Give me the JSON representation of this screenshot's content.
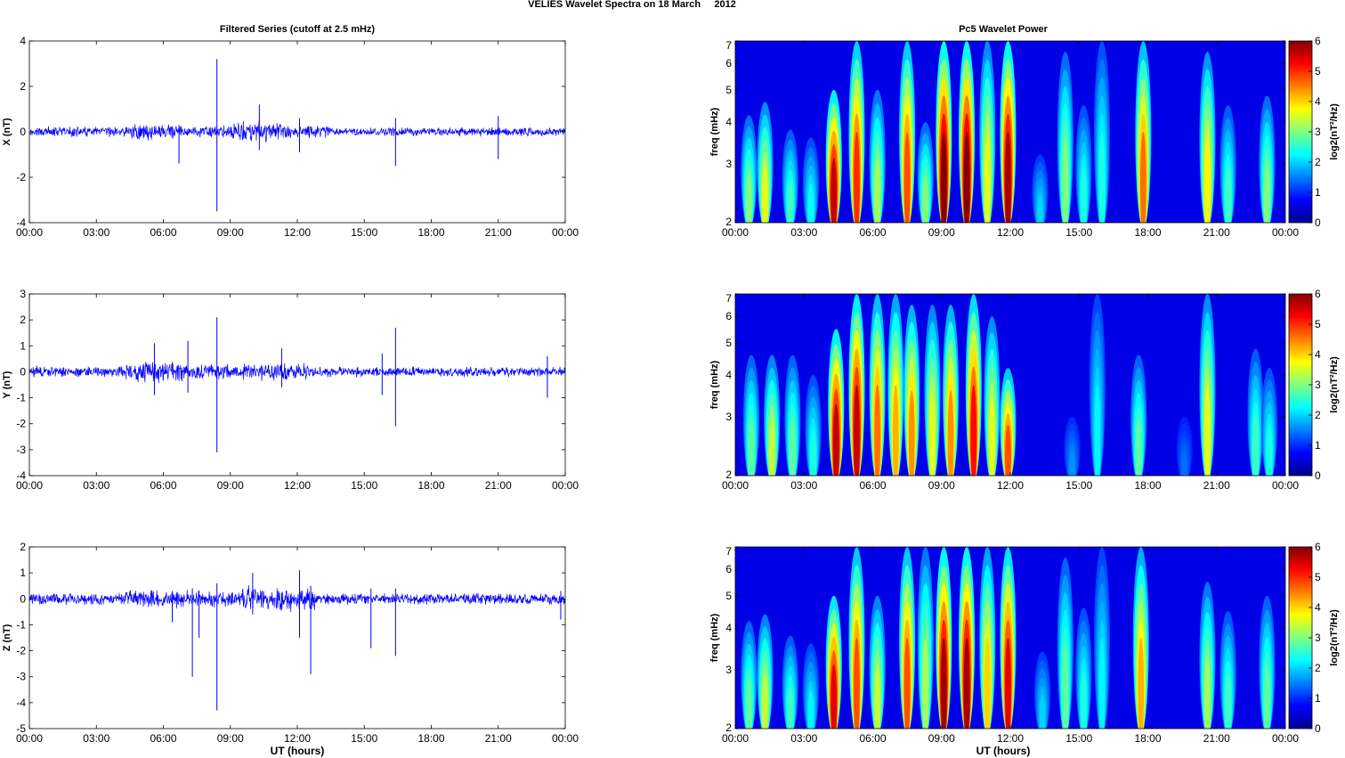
{
  "figure": {
    "title": "VELIES Wavelet Spectra on 18 March     2012",
    "left_column_title": "Filtered Series (cutoff at 2.5 mHz)",
    "right_column_title": "Pc5 Wavelet Power",
    "xlabel": "UT (hours)"
  },
  "chart_data": [
    {
      "type": "line",
      "name": "X filtered series",
      "ylabel": "X (nT)",
      "ylim": [
        -4,
        4
      ],
      "yticks": [
        "4",
        "2",
        "0",
        "-2",
        "-4"
      ],
      "xticks": [
        "00:00",
        "03:00",
        "06:00",
        "09:00",
        "12:00",
        "15:00",
        "18:00",
        "21:00",
        "00:00"
      ],
      "xlim_hours": [
        0,
        24
      ],
      "line_color": "#0000ff",
      "grid": false,
      "background_band": [
        {
          "from": 0.0,
          "to": 4.3,
          "amp": 0.25
        },
        {
          "from": 4.3,
          "to": 6.5,
          "amp": 0.4
        },
        {
          "from": 6.5,
          "to": 9.0,
          "amp": 0.3
        },
        {
          "from": 9.0,
          "to": 11.5,
          "amp": 0.5
        },
        {
          "from": 11.5,
          "to": 13.5,
          "amp": 0.35
        },
        {
          "from": 13.5,
          "to": 24.0,
          "amp": 0.22
        }
      ],
      "spikes": [
        {
          "x": 8.4,
          "lo": -3.5,
          "hi": 3.2
        },
        {
          "x": 6.7,
          "lo": -1.4,
          "hi": 0.3
        },
        {
          "x": 10.3,
          "lo": -0.8,
          "hi": 1.2
        },
        {
          "x": 16.4,
          "lo": -1.5,
          "hi": 0.6
        },
        {
          "x": 12.1,
          "lo": -0.9,
          "hi": 0.6
        },
        {
          "x": 21.0,
          "lo": -1.2,
          "hi": 0.7
        }
      ]
    },
    {
      "type": "heatmap",
      "name": "X wavelet power",
      "ylabel": "freq (mHz)",
      "yscale": "log",
      "ylim": [
        2,
        7
      ],
      "yticks": [
        "7",
        "6",
        "5",
        "4",
        "3",
        "2"
      ],
      "xticks": [
        "00:00",
        "03:00",
        "06:00",
        "09:00",
        "12:00",
        "15:00",
        "18:00",
        "21:00",
        "00:00"
      ],
      "colorbar_label": "log2(nT²/Hz)",
      "colorbar_ticks": [
        "6",
        "5",
        "4",
        "3",
        "2",
        "1",
        "0"
      ],
      "clim": [
        0,
        6
      ],
      "colormap": "jet",
      "blobs": [
        {
          "t": 0.6,
          "power": 3.0,
          "fmax": 4.2
        },
        {
          "t": 1.3,
          "power": 3.6,
          "fmax": 4.6
        },
        {
          "t": 2.4,
          "power": 2.6,
          "fmax": 3.8
        },
        {
          "t": 3.3,
          "power": 2.3,
          "fmax": 3.6
        },
        {
          "t": 4.3,
          "power": 5.6,
          "fmax": 5.0
        },
        {
          "t": 5.3,
          "power": 5.0,
          "fmax": 7.0
        },
        {
          "t": 6.2,
          "power": 3.2,
          "fmax": 5.0
        },
        {
          "t": 7.5,
          "power": 4.8,
          "fmax": 7.0
        },
        {
          "t": 8.3,
          "power": 3.0,
          "fmax": 4.0
        },
        {
          "t": 9.1,
          "power": 6.0,
          "fmax": 7.0
        },
        {
          "t": 10.1,
          "power": 6.0,
          "fmax": 7.0
        },
        {
          "t": 11.0,
          "power": 3.6,
          "fmax": 7.0
        },
        {
          "t": 11.9,
          "power": 5.8,
          "fmax": 7.0
        },
        {
          "t": 13.3,
          "power": 2.0,
          "fmax": 3.2
        },
        {
          "t": 14.4,
          "power": 3.0,
          "fmax": 6.5
        },
        {
          "t": 15.2,
          "power": 2.4,
          "fmax": 4.5
        },
        {
          "t": 16.0,
          "power": 2.4,
          "fmax": 7.0
        },
        {
          "t": 17.8,
          "power": 4.6,
          "fmax": 7.0
        },
        {
          "t": 20.6,
          "power": 3.8,
          "fmax": 6.5
        },
        {
          "t": 21.5,
          "power": 2.6,
          "fmax": 4.5
        },
        {
          "t": 23.2,
          "power": 3.0,
          "fmax": 4.8
        }
      ]
    },
    {
      "type": "line",
      "name": "Y filtered series",
      "ylabel": "Y (nT)",
      "ylim": [
        -4,
        3
      ],
      "yticks": [
        "3",
        "2",
        "1",
        "0",
        "-1",
        "-2",
        "-3",
        "-4"
      ],
      "xticks": [
        "00:00",
        "03:00",
        "06:00",
        "09:00",
        "12:00",
        "15:00",
        "18:00",
        "21:00",
        "00:00"
      ],
      "xlim_hours": [
        0,
        24
      ],
      "line_color": "#0000ff",
      "grid": false,
      "background_band": [
        {
          "from": 0.0,
          "to": 4.3,
          "amp": 0.25
        },
        {
          "from": 4.3,
          "to": 7.0,
          "amp": 0.45
        },
        {
          "from": 7.0,
          "to": 9.5,
          "amp": 0.35
        },
        {
          "from": 9.5,
          "to": 12.5,
          "amp": 0.4
        },
        {
          "from": 12.5,
          "to": 24.0,
          "amp": 0.22
        }
      ],
      "spikes": [
        {
          "x": 8.4,
          "lo": -3.1,
          "hi": 2.1
        },
        {
          "x": 16.4,
          "lo": -2.1,
          "hi": 1.7
        },
        {
          "x": 5.6,
          "lo": -0.9,
          "hi": 1.1
        },
        {
          "x": 7.1,
          "lo": -0.8,
          "hi": 1.2
        },
        {
          "x": 11.3,
          "lo": -0.6,
          "hi": 0.9
        },
        {
          "x": 15.8,
          "lo": -0.9,
          "hi": 0.7
        },
        {
          "x": 23.2,
          "lo": -1.0,
          "hi": 0.6
        }
      ]
    },
    {
      "type": "heatmap",
      "name": "Y wavelet power",
      "ylabel": "freq (mHz)",
      "yscale": "log",
      "ylim": [
        2,
        7
      ],
      "yticks": [
        "7",
        "6",
        "5",
        "4",
        "3",
        "2"
      ],
      "xticks": [
        "00:00",
        "03:00",
        "06:00",
        "09:00",
        "12:00",
        "15:00",
        "18:00",
        "21:00",
        "00:00"
      ],
      "colorbar_label": "log2(nT²/Hz)",
      "colorbar_ticks": [
        "6",
        "5",
        "4",
        "3",
        "2",
        "1",
        "0"
      ],
      "clim": [
        0,
        6
      ],
      "colormap": "jet",
      "blobs": [
        {
          "t": 0.7,
          "power": 2.8,
          "fmax": 4.6
        },
        {
          "t": 1.6,
          "power": 3.4,
          "fmax": 4.6
        },
        {
          "t": 2.5,
          "power": 2.8,
          "fmax": 4.6
        },
        {
          "t": 3.4,
          "power": 2.4,
          "fmax": 4.0
        },
        {
          "t": 4.4,
          "power": 5.6,
          "fmax": 5.5
        },
        {
          "t": 5.3,
          "power": 5.6,
          "fmax": 7.0
        },
        {
          "t": 6.2,
          "power": 4.6,
          "fmax": 7.0
        },
        {
          "t": 7.0,
          "power": 4.2,
          "fmax": 7.0
        },
        {
          "t": 7.7,
          "power": 4.4,
          "fmax": 6.5
        },
        {
          "t": 8.6,
          "power": 3.6,
          "fmax": 6.5
        },
        {
          "t": 9.4,
          "power": 4.4,
          "fmax": 6.5
        },
        {
          "t": 10.4,
          "power": 5.2,
          "fmax": 7.0
        },
        {
          "t": 11.2,
          "power": 3.6,
          "fmax": 6.0
        },
        {
          "t": 11.9,
          "power": 4.8,
          "fmax": 4.2
        },
        {
          "t": 14.7,
          "power": 1.6,
          "fmax": 3.0
        },
        {
          "t": 15.8,
          "power": 2.2,
          "fmax": 7.0
        },
        {
          "t": 17.6,
          "power": 2.8,
          "fmax": 4.6
        },
        {
          "t": 19.6,
          "power": 1.4,
          "fmax": 3.0
        },
        {
          "t": 20.6,
          "power": 3.6,
          "fmax": 7.0
        },
        {
          "t": 22.7,
          "power": 2.6,
          "fmax": 4.8
        },
        {
          "t": 23.3,
          "power": 2.4,
          "fmax": 4.2
        }
      ]
    },
    {
      "type": "line",
      "name": "Z filtered series",
      "ylabel": "Z (nT)",
      "ylim": [
        -5,
        2
      ],
      "yticks": [
        "2",
        "1",
        "0",
        "-1",
        "-2",
        "-3",
        "-4",
        "-5"
      ],
      "xticks": [
        "00:00",
        "03:00",
        "06:00",
        "09:00",
        "12:00",
        "15:00",
        "18:00",
        "21:00",
        "00:00"
      ],
      "xlim_hours": [
        0,
        24
      ],
      "line_color": "#0000ff",
      "grid": false,
      "background_band": [
        {
          "from": 0.0,
          "to": 4.3,
          "amp": 0.25
        },
        {
          "from": 4.3,
          "to": 7.0,
          "amp": 0.4
        },
        {
          "from": 7.0,
          "to": 9.5,
          "amp": 0.35
        },
        {
          "from": 9.5,
          "to": 12.8,
          "amp": 0.55
        },
        {
          "from": 12.8,
          "to": 24.0,
          "amp": 0.25
        }
      ],
      "spikes": [
        {
          "x": 7.3,
          "lo": -3.0,
          "hi": 0.4
        },
        {
          "x": 8.4,
          "lo": -4.3,
          "hi": 0.6
        },
        {
          "x": 12.6,
          "lo": -2.9,
          "hi": 0.5
        },
        {
          "x": 15.3,
          "lo": -1.9,
          "hi": 0.4
        },
        {
          "x": 16.4,
          "lo": -2.2,
          "hi": 0.4
        },
        {
          "x": 7.6,
          "lo": -1.5,
          "hi": 0.3
        },
        {
          "x": 12.1,
          "lo": -1.5,
          "hi": 1.1
        },
        {
          "x": 6.4,
          "lo": -0.9,
          "hi": 0.3
        },
        {
          "x": 23.8,
          "lo": -0.8,
          "hi": 0.3
        },
        {
          "x": 10.0,
          "lo": -0.6,
          "hi": 1.0
        }
      ]
    },
    {
      "type": "heatmap",
      "name": "Z wavelet power",
      "ylabel": "freq (mHz)",
      "yscale": "log",
      "ylim": [
        2,
        7
      ],
      "yticks": [
        "7",
        "6",
        "5",
        "4",
        "3",
        "2"
      ],
      "xticks": [
        "00:00",
        "03:00",
        "06:00",
        "09:00",
        "12:00",
        "15:00",
        "18:00",
        "21:00",
        "00:00"
      ],
      "colorbar_label": "log2(nT²/Hz)",
      "colorbar_ticks": [
        "6",
        "5",
        "4",
        "3",
        "2",
        "1",
        "0"
      ],
      "clim": [
        0,
        6
      ],
      "colormap": "jet",
      "blobs": [
        {
          "t": 0.6,
          "power": 2.8,
          "fmax": 4.2
        },
        {
          "t": 1.3,
          "power": 3.4,
          "fmax": 4.4
        },
        {
          "t": 2.4,
          "power": 2.6,
          "fmax": 3.8
        },
        {
          "t": 3.3,
          "power": 2.2,
          "fmax": 3.6
        },
        {
          "t": 4.3,
          "power": 5.4,
          "fmax": 5.0
        },
        {
          "t": 5.3,
          "power": 4.8,
          "fmax": 7.0
        },
        {
          "t": 6.2,
          "power": 3.4,
          "fmax": 5.0
        },
        {
          "t": 7.5,
          "power": 4.8,
          "fmax": 7.0
        },
        {
          "t": 8.3,
          "power": 3.2,
          "fmax": 7.0
        },
        {
          "t": 9.1,
          "power": 5.8,
          "fmax": 7.0
        },
        {
          "t": 10.1,
          "power": 5.8,
          "fmax": 7.0
        },
        {
          "t": 11.0,
          "power": 4.0,
          "fmax": 7.0
        },
        {
          "t": 11.9,
          "power": 5.4,
          "fmax": 7.0
        },
        {
          "t": 13.4,
          "power": 2.0,
          "fmax": 3.4
        },
        {
          "t": 14.4,
          "power": 2.8,
          "fmax": 6.5
        },
        {
          "t": 15.2,
          "power": 2.4,
          "fmax": 4.6
        },
        {
          "t": 16.0,
          "power": 2.2,
          "fmax": 7.0
        },
        {
          "t": 17.7,
          "power": 4.2,
          "fmax": 7.0
        },
        {
          "t": 20.6,
          "power": 3.2,
          "fmax": 5.5
        },
        {
          "t": 21.5,
          "power": 2.6,
          "fmax": 4.5
        },
        {
          "t": 23.2,
          "power": 2.8,
          "fmax": 5.0
        }
      ]
    }
  ]
}
